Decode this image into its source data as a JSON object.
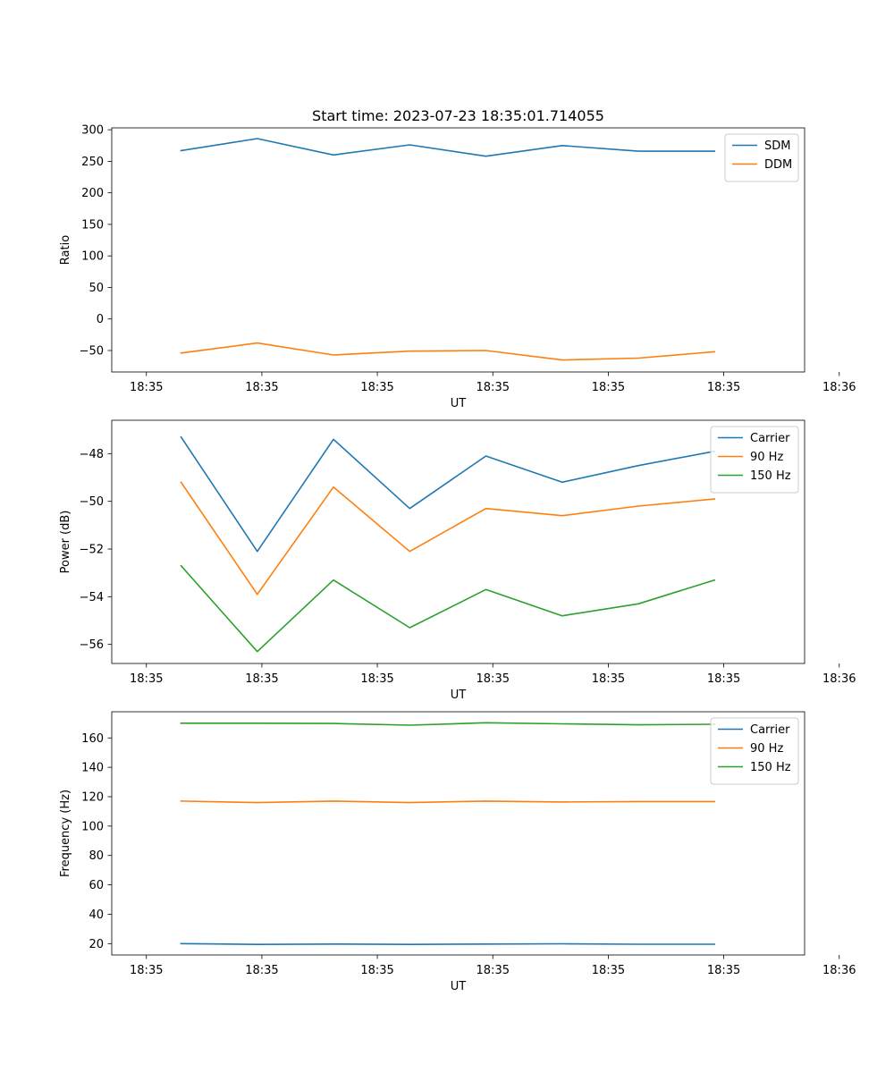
{
  "figure": {
    "title": "Start time: 2023-07-23 18:35:01.714055"
  },
  "colors": {
    "blue": "#1f77b4",
    "orange": "#ff7f0e",
    "green": "#2ca02c",
    "axis": "#000000",
    "legend_border": "#cccccc"
  },
  "chart_data": [
    {
      "type": "line",
      "title": "Start time: 2023-07-23 18:35:01.714055",
      "xlabel": "UT",
      "ylabel": "Ratio",
      "xlim": [
        -0.5,
        9.5
      ],
      "ylim": [
        -84,
        303
      ],
      "x": [
        0.5,
        1.6,
        2.7,
        3.8,
        4.9,
        6.0,
        7.1,
        8.2
      ],
      "xticks": [
        0,
        1.667,
        3.333,
        5.0,
        6.667,
        8.333,
        10.0
      ],
      "xtick_labels": [
        "18:35",
        "18:35",
        "18:35",
        "18:35",
        "18:35",
        "18:35",
        "18:36"
      ],
      "yticks": [
        -50,
        0,
        50,
        100,
        150,
        200,
        250,
        300
      ],
      "ytick_labels": [
        "−50",
        "0",
        "50",
        "100",
        "150",
        "200",
        "250",
        "300"
      ],
      "legend_position": "top-right",
      "series": [
        {
          "name": "SDM",
          "color": "#1f77b4",
          "values": [
            267,
            286,
            260,
            276,
            258,
            275,
            266,
            266
          ]
        },
        {
          "name": "DDM",
          "color": "#ff7f0e",
          "values": [
            -54,
            -38,
            -57,
            -51,
            -50,
            -65,
            -62,
            -52
          ]
        }
      ]
    },
    {
      "type": "line",
      "title": "",
      "xlabel": "UT",
      "ylabel": "Power (dB)",
      "xlim": [
        -0.5,
        9.5
      ],
      "ylim": [
        -56.8,
        -46.6
      ],
      "x": [
        0.5,
        1.6,
        2.7,
        3.8,
        4.9,
        6.0,
        7.1,
        8.2
      ],
      "xticks": [
        0,
        1.667,
        3.333,
        5.0,
        6.667,
        8.333,
        10.0
      ],
      "xtick_labels": [
        "18:35",
        "18:35",
        "18:35",
        "18:35",
        "18:35",
        "18:35",
        "18:36"
      ],
      "yticks": [
        -56,
        -54,
        -52,
        -50,
        -48
      ],
      "ytick_labels": [
        "−56",
        "−54",
        "−52",
        "−50",
        "−48"
      ],
      "legend_position": "top-right",
      "series": [
        {
          "name": "Carrier",
          "color": "#1f77b4",
          "values": [
            -47.3,
            -52.1,
            -47.4,
            -50.3,
            -48.1,
            -49.2,
            -48.5,
            -47.9
          ]
        },
        {
          "name": "90 Hz",
          "color": "#ff7f0e",
          "values": [
            -49.2,
            -53.9,
            -49.4,
            -52.1,
            -50.3,
            -50.6,
            -50.2,
            -49.9
          ]
        },
        {
          "name": "150 Hz",
          "color": "#2ca02c",
          "values": [
            -52.7,
            -56.3,
            -53.3,
            -55.3,
            -53.7,
            -54.8,
            -54.3,
            -53.3
          ]
        }
      ]
    },
    {
      "type": "line",
      "title": "",
      "xlabel": "UT",
      "ylabel": "Frequency (Hz)",
      "xlim": [
        -0.5,
        9.5
      ],
      "ylim": [
        12.3,
        177.8
      ],
      "x": [
        0.5,
        1.6,
        2.7,
        3.8,
        4.9,
        6.0,
        7.1,
        8.2
      ],
      "xticks": [
        0,
        1.667,
        3.333,
        5.0,
        6.667,
        8.333,
        10.0
      ],
      "xtick_labels": [
        "18:35",
        "18:35",
        "18:35",
        "18:35",
        "18:35",
        "18:35",
        "18:36"
      ],
      "yticks": [
        20,
        40,
        60,
        80,
        100,
        120,
        140,
        160
      ],
      "ytick_labels": [
        "20",
        "40",
        "60",
        "80",
        "100",
        "120",
        "140",
        "160"
      ],
      "legend_position": "top-right",
      "series": [
        {
          "name": "Carrier",
          "color": "#1f77b4",
          "values": [
            20.0,
            19.5,
            19.7,
            19.5,
            19.7,
            19.9,
            19.6,
            19.6
          ]
        },
        {
          "name": "90 Hz",
          "color": "#ff7f0e",
          "values": [
            117,
            116,
            117,
            116,
            117,
            116.4,
            116.7,
            116.7
          ]
        },
        {
          "name": "150 Hz",
          "color": "#2ca02c",
          "values": [
            170,
            170,
            169.8,
            168.7,
            170.3,
            169.6,
            168.9,
            169.3
          ]
        }
      ]
    }
  ]
}
